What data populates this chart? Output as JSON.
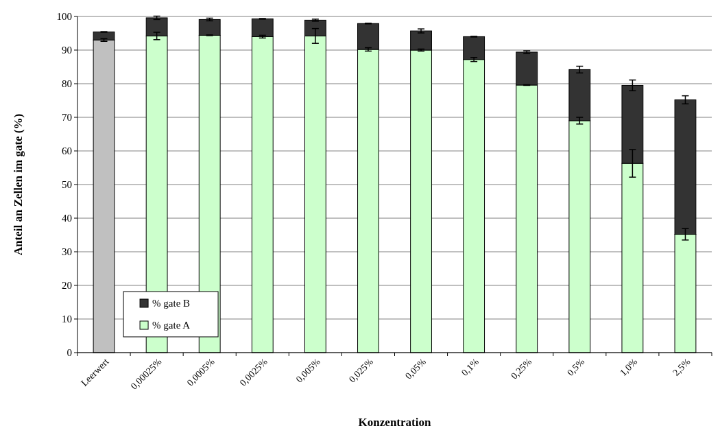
{
  "chart_data": {
    "type": "bar",
    "stacked": true,
    "xlabel": "Konzentration",
    "ylabel": "Anteil an Zellen im gate (%)",
    "categories": [
      "Leerwert",
      "0,00025%",
      "0,0005%",
      "0,0025%",
      "0,005%",
      "0,025%",
      "0,05%",
      "0,1%",
      "0,25%",
      "0,5%",
      "1,0%",
      "2,5%"
    ],
    "series": [
      {
        "name": "% gate A",
        "color": "#ccffcc",
        "colors": [
          "#c0c0c0",
          "#ccffcc",
          "#ccffcc",
          "#ccffcc",
          "#ccffcc",
          "#ccffcc",
          "#ccffcc",
          "#ccffcc",
          "#ccffcc",
          "#ccffcc",
          "#ccffcc",
          "#ccffcc"
        ],
        "values": [
          93.0,
          94.2,
          94.4,
          94.0,
          94.2,
          90.2,
          90.0,
          87.2,
          79.6,
          69.0,
          56.3,
          35.2
        ],
        "errors": [
          0.4,
          1.1,
          0.1,
          0.4,
          2.2,
          0.5,
          0.3,
          0.6,
          0.1,
          1.0,
          4.1,
          1.7
        ]
      },
      {
        "name": "% gate B",
        "color": "#333333",
        "values": [
          2.4,
          5.4,
          4.7,
          5.3,
          4.7,
          7.7,
          5.7,
          6.8,
          9.8,
          15.2,
          23.2,
          40.0
        ],
        "errors": [
          0.1,
          0.5,
          0.4,
          0.1,
          0.3,
          0.1,
          0.6,
          0.1,
          0.4,
          1.0,
          1.6,
          1.2
        ]
      }
    ],
    "ylim": [
      0,
      100
    ],
    "yticks": [
      0,
      10,
      20,
      30,
      40,
      50,
      60,
      70,
      80,
      90,
      100
    ],
    "grid": "y",
    "legend": "bottom left"
  }
}
